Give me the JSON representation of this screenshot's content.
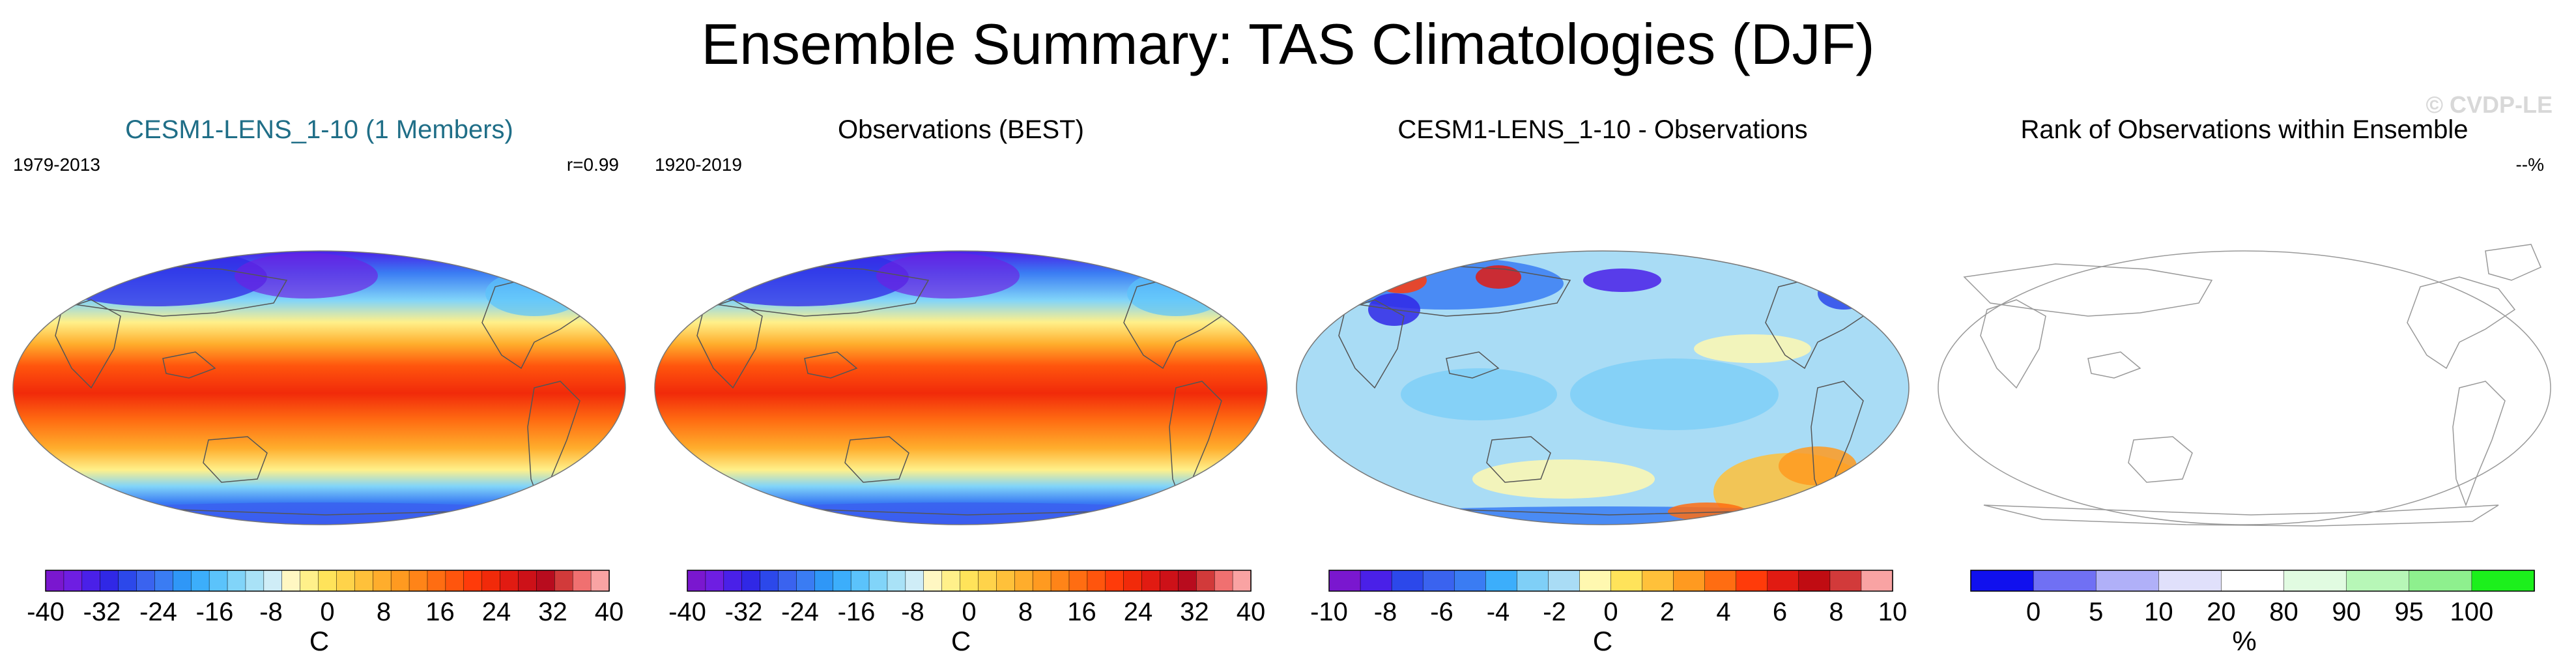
{
  "title": "Ensemble Summary: TAS Climatologies (DJF)",
  "watermark": "© CVDP-LE",
  "colors": {
    "tas_palette": [
      "#7a17cf",
      "#6e1ee2",
      "#4a20e8",
      "#3028e6",
      "#2c48ea",
      "#3a63ef",
      "#3a7cf3",
      "#2f97f7",
      "#3caefb",
      "#5bc3fb",
      "#81d4f9",
      "#a9e2f7",
      "#cfedf7",
      "#fff7c2",
      "#fff08a",
      "#ffe35a",
      "#ffd34a",
      "#ffc13a",
      "#ffad2c",
      "#ff9a20",
      "#ff8418",
      "#ff6d12",
      "#ff550d",
      "#ff3b0a",
      "#f12a0a",
      "#e11b12",
      "#cd1118",
      "#b80c1e",
      "#d23a3a",
      "#f07070",
      "#f9a3a3"
    ],
    "diff_palette": [
      "#7a17cf",
      "#4a20e8",
      "#2c48ea",
      "#3a63ef",
      "#3a7cf3",
      "#3caefb",
      "#7fcff7",
      "#a9dcf5",
      "#fff8b0",
      "#ffe35a",
      "#ffc13a",
      "#ff9a20",
      "#ff6d12",
      "#ff3b0a",
      "#e11b12",
      "#c00c12",
      "#d23a3a",
      "#f9a3a3"
    ],
    "rank_palette": [
      "#1010ee",
      "#7070f4",
      "#b0b0f8",
      "#e0e0fb",
      "#ffffff",
      "#e1fbe1",
      "#b7f7b7",
      "#8ef08e",
      "#1cf01c"
    ],
    "title_teal": "#1f6e87"
  },
  "chart_data": [
    {
      "type": "heatmap",
      "title": "CESM1-LENS_1-10 (1 Members)",
      "period": "1979-2013",
      "stat": "r=0.99",
      "colorbar": {
        "unit": "C",
        "ticks": [
          "-40",
          "-32",
          "-24",
          "-16",
          "-8",
          "0",
          "8",
          "16",
          "24",
          "32",
          "40"
        ],
        "range": [
          -40,
          40
        ],
        "palette": "tas_palette"
      }
    },
    {
      "type": "heatmap",
      "title": "Observations (BEST)",
      "period": "1920-2019",
      "colorbar": {
        "unit": "C",
        "ticks": [
          "-40",
          "-32",
          "-24",
          "-16",
          "-8",
          "0",
          "8",
          "16",
          "24",
          "32",
          "40"
        ],
        "range": [
          -40,
          40
        ],
        "palette": "tas_palette"
      }
    },
    {
      "type": "heatmap",
      "title": "CESM1-LENS_1-10 - Observations",
      "colorbar": {
        "unit": "C",
        "ticks": [
          "-10",
          "-8",
          "-6",
          "-4",
          "-2",
          "0",
          "2",
          "4",
          "6",
          "8",
          "10"
        ],
        "range": [
          -10,
          10
        ],
        "palette": "diff_palette"
      }
    },
    {
      "type": "heatmap",
      "title": "Rank of Observations within Ensemble",
      "stat": "--%",
      "colorbar": {
        "unit": "%",
        "ticks": [
          "0",
          "5",
          "10",
          "20",
          "80",
          "90",
          "95",
          "100"
        ],
        "palette": "rank_palette"
      }
    }
  ]
}
